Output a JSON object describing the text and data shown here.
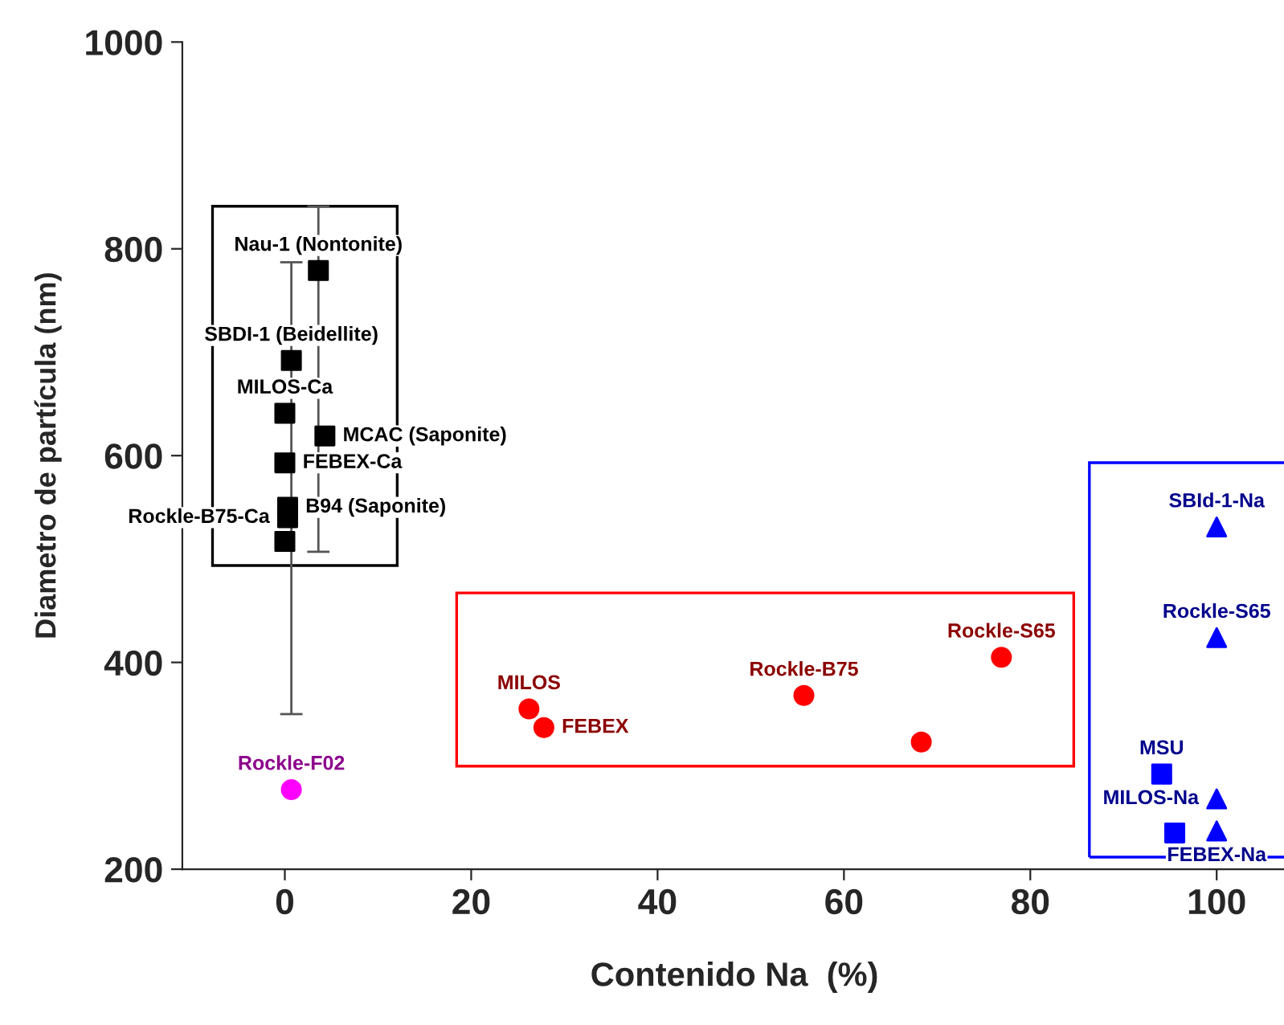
{
  "chart_data": {
    "type": "scatter",
    "xlabel": "Contenido Na  (%)",
    "ylabel": "Diametro de partícula (nm)",
    "xlim": [
      -11,
      107.5
    ],
    "ylim": [
      200,
      1000
    ],
    "xticks": [
      0,
      20,
      40,
      60,
      80,
      100
    ],
    "yticks": [
      200,
      400,
      600,
      800,
      1000
    ],
    "grid": false,
    "legend": false,
    "series": [
      {
        "color": "#000000",
        "marker": "square",
        "x": [
          3.6,
          0.7,
          4.3,
          0.3,
          0.3
        ],
        "values": [
          779,
          692,
          619,
          550,
          540
        ],
        "errors": [
          [
            507,
            841
          ],
          [
            350,
            787
          ],
          null,
          null,
          null
        ],
        "value_labels": [
          "Nau-1 (Nontonite)",
          "SBDI-1 (Beidellite)",
          "MCAC (Saponite)",
          "B94 (Saponite)",
          "Rockle-B75-Ca"
        ]
      },
      {
        "color": "#000000",
        "marker": "square",
        "x": [
          0,
          0,
          0
        ],
        "values": [
          641,
          593,
          517
        ],
        "value_labels": [
          "MILOS-Ca",
          "FEBEX-Ca",
          null
        ]
      },
      {
        "color": "#ff0000",
        "marker": "circle",
        "x": [
          26.2,
          27.8,
          55.7,
          68.3,
          76.9
        ],
        "values": [
          355,
          337,
          368,
          323,
          405
        ],
        "value_labels": [
          "MILOS",
          "FEBEX",
          "Rockle-B75",
          null,
          "Rockle-S65"
        ]
      },
      {
        "color": "#ff00ff",
        "marker": "circle",
        "x": [
          0.7
        ],
        "values": [
          277
        ],
        "value_labels": [
          "Rockle-F02"
        ]
      },
      {
        "color": "#0000ff",
        "marker": "square",
        "x": [
          94.1,
          95.5
        ],
        "values": [
          292,
          235
        ],
        "value_labels": [
          "MSU",
          null
        ]
      },
      {
        "color": "#0000ff",
        "marker": "triangle",
        "x": [
          100,
          100,
          100,
          100
        ],
        "values": [
          531,
          424,
          268,
          237
        ],
        "value_labels": [
          "SBId-1-Na",
          "Rockle-S65",
          "MILOS-Na",
          "FEBEX-Na"
        ]
      }
    ]
  }
}
